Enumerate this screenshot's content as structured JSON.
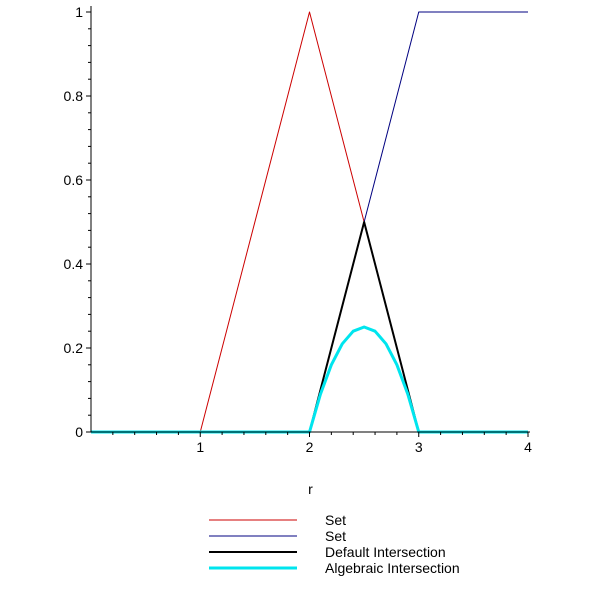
{
  "chart_data": {
    "type": "line",
    "xlabel": "r",
    "ylabel": "",
    "xlim": [
      0,
      4
    ],
    "ylim": [
      0,
      1
    ],
    "x_ticks": [
      "1",
      "2",
      "3",
      "4"
    ],
    "y_ticks": [
      "0",
      "0.2",
      "0.4",
      "0.6",
      "0.8",
      "1"
    ],
    "grid": false,
    "legend_position": "bottom",
    "series": [
      {
        "name": "Set",
        "color": "#cc0000",
        "width": 1,
        "points": [
          [
            0,
            0
          ],
          [
            1,
            0
          ],
          [
            2,
            1
          ],
          [
            3,
            0
          ],
          [
            4,
            0
          ]
        ]
      },
      {
        "name": "Set",
        "color": "#000080",
        "width": 1,
        "points": [
          [
            0,
            0
          ],
          [
            2,
            0
          ],
          [
            3,
            1
          ],
          [
            4,
            1
          ]
        ]
      },
      {
        "name": "Default Intersection",
        "color": "#000000",
        "width": 2,
        "points": [
          [
            0,
            0
          ],
          [
            2,
            0
          ],
          [
            2.5,
            0.5
          ],
          [
            3,
            0
          ],
          [
            4,
            0
          ]
        ]
      },
      {
        "name": "Algebraic Intersection",
        "color": "#00e5ee",
        "width": 3,
        "points": [
          [
            0,
            0
          ],
          [
            2,
            0
          ],
          [
            2.1,
            0.09
          ],
          [
            2.2,
            0.16
          ],
          [
            2.3,
            0.21
          ],
          [
            2.4,
            0.24
          ],
          [
            2.5,
            0.25
          ],
          [
            2.6,
            0.24
          ],
          [
            2.7,
            0.21
          ],
          [
            2.8,
            0.16
          ],
          [
            2.9,
            0.09
          ],
          [
            3,
            0
          ],
          [
            4,
            0
          ]
        ]
      }
    ]
  }
}
